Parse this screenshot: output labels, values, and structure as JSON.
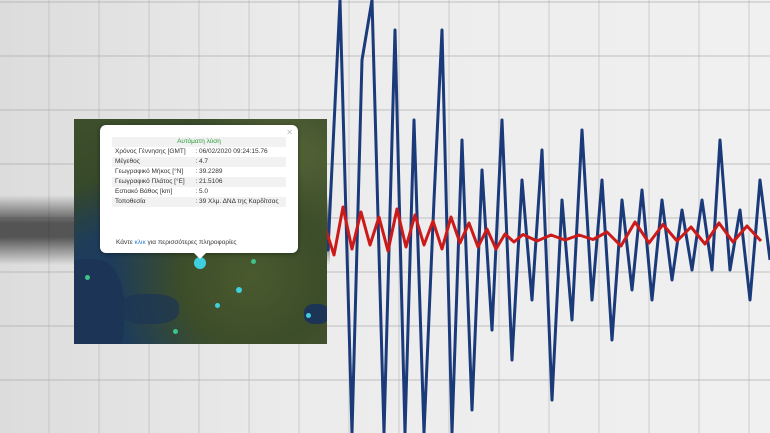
{
  "colors": {
    "trace_primary": "#1b3a7a",
    "trace_secondary": "#cc1a1a",
    "popup_title": "#2a9a3a",
    "link": "#2a7fd0",
    "marker": "#3fd0e0"
  },
  "popup": {
    "title": "Αυτόματη λύση",
    "close_icon": "close-icon",
    "rows": [
      {
        "label": "Χρόνος Γέννησης [GMT]",
        "value": ": 06/02/2020 09:24:15.76"
      },
      {
        "label": "Μέγεθος",
        "value": ": 4.7"
      },
      {
        "label": "Γεωγραφικό Μήκος [°N]",
        "value": ": 39.2289"
      },
      {
        "label": "Γεωγραφικό Πλάτος [°E]",
        "value": ": 21.5106"
      },
      {
        "label": "Εστιακό Βάθος [km]",
        "value": ": 5.0"
      },
      {
        "label": "Τοποθεσία",
        "value": ": 39 Χλμ. ΔΝΔ της Καρδίτσας"
      }
    ],
    "more_prefix": "Κάντε ",
    "more_link": "κλικ",
    "more_suffix": " για περισσότερες πληροφορίες"
  }
}
